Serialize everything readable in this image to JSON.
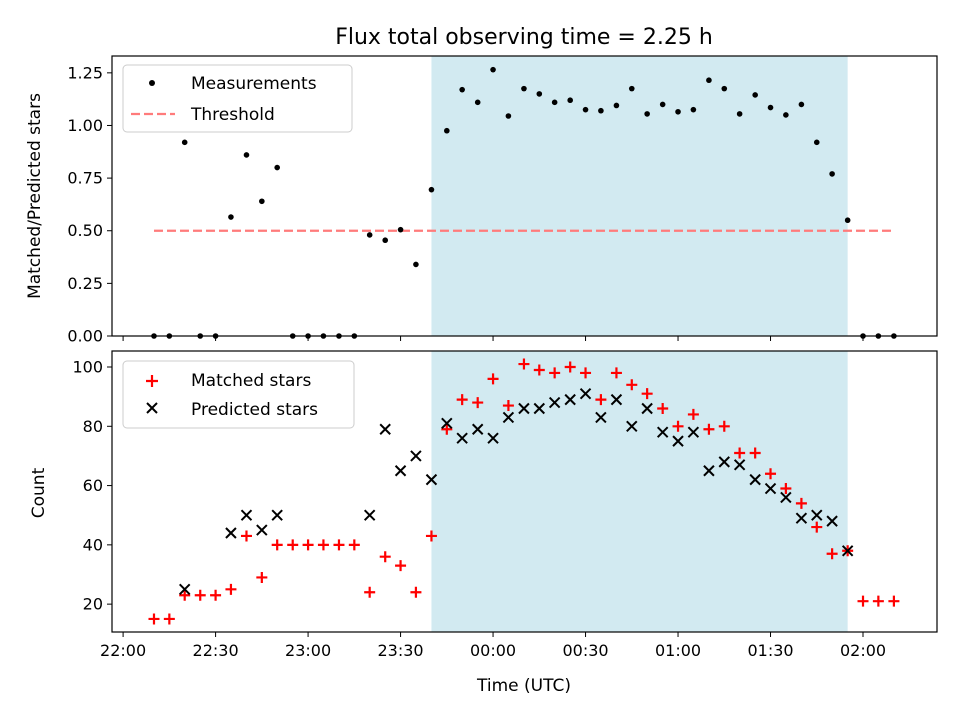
{
  "chart_data": [
    {
      "type": "scatter",
      "title": "Flux total observing time = 2.25 h",
      "xlabel": "",
      "ylabel": "Matched/Predicted stars",
      "ylim": [
        0,
        1.33
      ],
      "yticks": [
        0.0,
        0.25,
        0.5,
        0.75,
        1.0,
        1.25
      ],
      "ytick_labels": [
        "0.00",
        "0.25",
        "0.50",
        "0.75",
        "1.00",
        "1.25"
      ],
      "x_unit": "hours after 22:00 UTC",
      "xlim": [
        -0.06,
        4.4
      ],
      "legend": {
        "placement": "top-left",
        "entries": [
          {
            "label": "Measurements",
            "marker": "dot",
            "color": "#000000"
          },
          {
            "label": "Threshold",
            "marker": "dashed-line",
            "color": "#ff7b7b"
          }
        ]
      },
      "shaded_region": {
        "x0": 1.667,
        "x1": 3.917,
        "color": "#add8e6"
      },
      "threshold": {
        "y": 0.5,
        "x0": 0.167,
        "x1": 4.167
      },
      "series": [
        {
          "name": "Measurements",
          "points": [
            [
              0.167,
              0.0
            ],
            [
              0.25,
              0.0
            ],
            [
              0.333,
              0.92
            ],
            [
              0.417,
              0.0
            ],
            [
              0.5,
              0.0
            ],
            [
              0.583,
              0.565
            ],
            [
              0.667,
              0.86
            ],
            [
              0.75,
              0.64
            ],
            [
              0.833,
              0.8
            ],
            [
              0.917,
              0.0
            ],
            [
              1.0,
              0.0
            ],
            [
              1.083,
              0.0
            ],
            [
              1.167,
              0.0
            ],
            [
              1.25,
              0.0
            ],
            [
              1.333,
              0.48
            ],
            [
              1.417,
              0.455
            ],
            [
              1.5,
              0.505
            ],
            [
              1.583,
              0.34
            ],
            [
              1.667,
              0.695
            ],
            [
              1.75,
              0.975
            ],
            [
              1.833,
              1.17
            ],
            [
              1.917,
              1.11
            ],
            [
              2.0,
              1.265
            ],
            [
              2.083,
              1.045
            ],
            [
              2.167,
              1.175
            ],
            [
              2.25,
              1.15
            ],
            [
              2.333,
              1.11
            ],
            [
              2.417,
              1.12
            ],
            [
              2.5,
              1.075
            ],
            [
              2.583,
              1.07
            ],
            [
              2.667,
              1.095
            ],
            [
              2.75,
              1.175
            ],
            [
              2.833,
              1.055
            ],
            [
              2.917,
              1.1
            ],
            [
              3.0,
              1.065
            ],
            [
              3.083,
              1.075
            ],
            [
              3.167,
              1.215
            ],
            [
              3.25,
              1.175
            ],
            [
              3.333,
              1.055
            ],
            [
              3.417,
              1.145
            ],
            [
              3.5,
              1.085
            ],
            [
              3.583,
              1.05
            ],
            [
              3.667,
              1.1
            ],
            [
              3.75,
              0.92
            ],
            [
              3.833,
              0.77
            ],
            [
              3.917,
              0.55
            ],
            [
              4.0,
              0.0
            ],
            [
              4.083,
              0.0
            ],
            [
              4.167,
              0.0
            ]
          ]
        }
      ]
    },
    {
      "type": "scatter",
      "title": "",
      "xlabel": "Time (UTC)",
      "ylabel": "Count",
      "ylim": [
        10.6,
        105.4
      ],
      "yticks": [
        20,
        40,
        60,
        80,
        100
      ],
      "ytick_labels": [
        "20",
        "40",
        "60",
        "80",
        "100"
      ],
      "x_unit": "hours after 22:00 UTC",
      "xlim": [
        -0.06,
        4.4
      ],
      "xticks": [
        0,
        0.5,
        1.0,
        1.5,
        2.0,
        2.5,
        3.0,
        3.5,
        4.0
      ],
      "xtick_labels": [
        "22:00",
        "22:30",
        "23:00",
        "23:30",
        "00:00",
        "00:30",
        "01:00",
        "01:30",
        "02:00"
      ],
      "legend": {
        "placement": "top-left",
        "entries": [
          {
            "label": "Matched stars",
            "marker": "plus",
            "color": "#ff0000"
          },
          {
            "label": "Predicted stars",
            "marker": "x",
            "color": "#000000"
          }
        ]
      },
      "shaded_region": {
        "x0": 1.667,
        "x1": 3.917,
        "color": "#add8e6"
      },
      "series": [
        {
          "name": "Matched stars",
          "points": [
            [
              0.167,
              15
            ],
            [
              0.25,
              15
            ],
            [
              0.333,
              23
            ],
            [
              0.417,
              23
            ],
            [
              0.5,
              23
            ],
            [
              0.583,
              25
            ],
            [
              0.667,
              43
            ],
            [
              0.75,
              29
            ],
            [
              0.833,
              40
            ],
            [
              0.917,
              40
            ],
            [
              1.0,
              40
            ],
            [
              1.083,
              40
            ],
            [
              1.167,
              40
            ],
            [
              1.25,
              40
            ],
            [
              1.333,
              24
            ],
            [
              1.417,
              36
            ],
            [
              1.5,
              33
            ],
            [
              1.583,
              24
            ],
            [
              1.667,
              43
            ],
            [
              1.75,
              79
            ],
            [
              1.833,
              89
            ],
            [
              1.917,
              88
            ],
            [
              2.0,
              96
            ],
            [
              2.083,
              87
            ],
            [
              2.167,
              101
            ],
            [
              2.25,
              99
            ],
            [
              2.333,
              98
            ],
            [
              2.417,
              100
            ],
            [
              2.5,
              98
            ],
            [
              2.583,
              89
            ],
            [
              2.667,
              98
            ],
            [
              2.75,
              94
            ],
            [
              2.833,
              91
            ],
            [
              2.917,
              86
            ],
            [
              3.0,
              80
            ],
            [
              3.083,
              84
            ],
            [
              3.167,
              79
            ],
            [
              3.25,
              80
            ],
            [
              3.333,
              71
            ],
            [
              3.417,
              71
            ],
            [
              3.5,
              64
            ],
            [
              3.583,
              59
            ],
            [
              3.667,
              54
            ],
            [
              3.75,
              46
            ],
            [
              3.833,
              37
            ],
            [
              3.917,
              38
            ],
            [
              4.0,
              21
            ],
            [
              4.083,
              21
            ],
            [
              4.167,
              21
            ]
          ]
        },
        {
          "name": "Predicted stars",
          "points": [
            [
              0.333,
              25
            ],
            [
              0.583,
              44
            ],
            [
              0.667,
              50
            ],
            [
              0.75,
              45
            ],
            [
              0.833,
              50
            ],
            [
              1.333,
              50
            ],
            [
              1.417,
              79
            ],
            [
              1.5,
              65
            ],
            [
              1.583,
              70
            ],
            [
              1.667,
              62
            ],
            [
              1.75,
              81
            ],
            [
              1.833,
              76
            ],
            [
              1.917,
              79
            ],
            [
              2.0,
              76
            ],
            [
              2.083,
              83
            ],
            [
              2.167,
              86
            ],
            [
              2.25,
              86
            ],
            [
              2.333,
              88
            ],
            [
              2.417,
              89
            ],
            [
              2.5,
              91
            ],
            [
              2.583,
              83
            ],
            [
              2.667,
              89
            ],
            [
              2.75,
              80
            ],
            [
              2.833,
              86
            ],
            [
              2.917,
              78
            ],
            [
              3.0,
              75
            ],
            [
              3.083,
              78
            ],
            [
              3.167,
              65
            ],
            [
              3.25,
              68
            ],
            [
              3.333,
              67
            ],
            [
              3.417,
              62
            ],
            [
              3.5,
              59
            ],
            [
              3.583,
              56
            ],
            [
              3.667,
              49
            ],
            [
              3.75,
              50
            ],
            [
              3.833,
              48
            ],
            [
              3.917,
              38
            ]
          ]
        }
      ]
    }
  ]
}
